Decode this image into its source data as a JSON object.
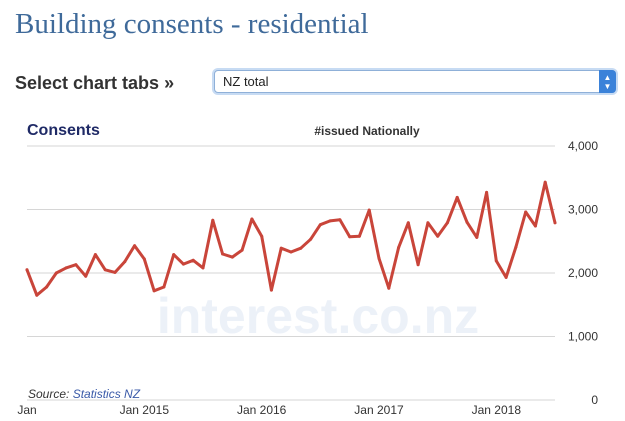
{
  "page": {
    "title": "Building consents - residential",
    "tabs_label": "Select chart tabs »",
    "tab_selected": "NZ total"
  },
  "chart_data": {
    "type": "line",
    "title": "Consents",
    "subtitle": "#issued Nationally",
    "source_prefix": "Source: ",
    "source_name": "Statistics NZ",
    "watermark": "interest.co.nz",
    "xlabel": "",
    "ylabel": "",
    "ylim": [
      0,
      4000
    ],
    "yticks": [
      0,
      1000,
      2000,
      3000,
      4000
    ],
    "ytick_labels": [
      "0",
      "1,000",
      "2,000",
      "3,000",
      "4,000"
    ],
    "xticks": [
      {
        "index": 0,
        "label": "Jan"
      },
      {
        "index": 12,
        "label": "Jan 2015"
      },
      {
        "index": 24,
        "label": "Jan 2016"
      },
      {
        "index": 36,
        "label": "Jan 2017"
      },
      {
        "index": 48,
        "label": "Jan 2018"
      }
    ],
    "grid": true,
    "line_color": "#c9453a",
    "series": [
      {
        "name": "Consents issued nationally",
        "values": [
          2050,
          1650,
          1780,
          2000,
          2080,
          2130,
          1950,
          2290,
          2050,
          2010,
          2180,
          2430,
          2220,
          1720,
          1780,
          2290,
          2140,
          2200,
          2080,
          2830,
          2300,
          2250,
          2360,
          2850,
          2580,
          1730,
          2390,
          2330,
          2390,
          2530,
          2760,
          2820,
          2840,
          2570,
          2580,
          2990,
          2230,
          1760,
          2400,
          2790,
          2130,
          2790,
          2580,
          2790,
          3190,
          2800,
          2560,
          3270,
          2190,
          1930,
          2410,
          2960,
          2740,
          3430,
          2790
        ]
      }
    ]
  }
}
